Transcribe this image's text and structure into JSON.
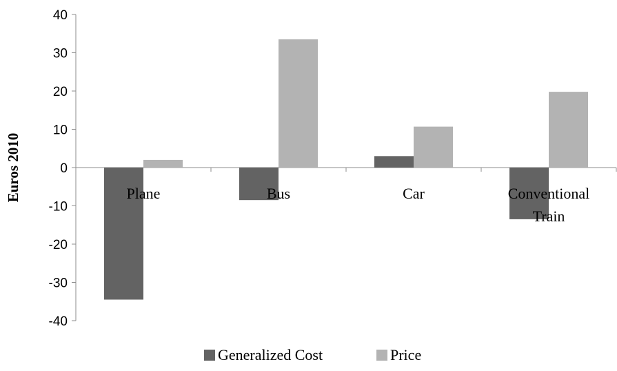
{
  "chart_data": {
    "type": "bar",
    "title": "",
    "xlabel": "",
    "ylabel": "Euros 2010",
    "ylim": [
      -40,
      40
    ],
    "yticks": [
      40,
      30,
      20,
      10,
      0,
      -10,
      -20,
      -30,
      -40
    ],
    "categories": [
      [
        "Plane"
      ],
      [
        "Bus"
      ],
      [
        "Car"
      ],
      [
        "Conventional",
        "Train"
      ]
    ],
    "series": [
      {
        "name": "Generalized Cost",
        "color": "#636363",
        "values": [
          -34.5,
          -8.5,
          3.0,
          -13.5
        ]
      },
      {
        "name": "Price",
        "color": "#b3b3b3",
        "values": [
          2.0,
          33.5,
          10.7,
          19.8
        ]
      }
    ],
    "grid": false,
    "legend": "bottom"
  }
}
